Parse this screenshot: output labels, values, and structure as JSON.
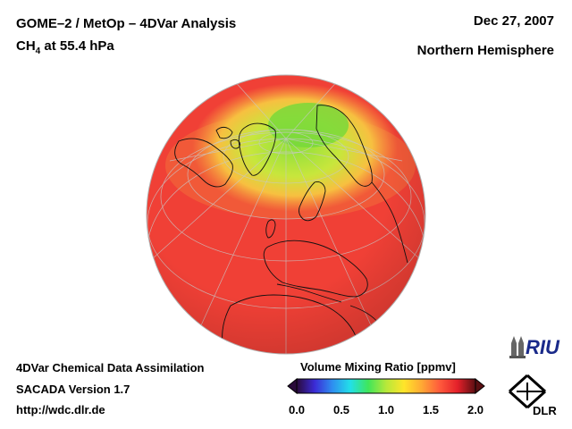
{
  "header": {
    "title": "GOME–2 / MetOp – 4DVar Analysis",
    "species_prefix": "CH",
    "species_sub": "4",
    "species_suffix": " at 55.4 hPa",
    "date": "Dec 27, 2007",
    "region": "Northern Hemisphere"
  },
  "footer": {
    "line1": "4DVar Chemical Data Assimilation",
    "line2": "SACADA Version 1.7",
    "line3": "http://wdc.dlr.de"
  },
  "colorbar": {
    "title": "Volume Mixing Ratio [ppmv]",
    "ticks": [
      "0.0",
      "0.5",
      "1.0",
      "1.5",
      "2.0"
    ],
    "range": [
      0.0,
      2.0
    ],
    "colors": [
      "#2a0a3a",
      "#3b2bd6",
      "#2e8ff0",
      "#22e0e8",
      "#3fe65a",
      "#b6e83a",
      "#ffe52a",
      "#ffa834",
      "#ff5a3c",
      "#e4202a",
      "#5a0f12"
    ]
  },
  "map": {
    "projection": "orthographic",
    "field_colors": {
      "high": "#f04036",
      "mid": "#f7a840",
      "low": "#8fe03c"
    }
  },
  "logos": {
    "riu_text": "RIU",
    "dlr_text": "DLR"
  }
}
